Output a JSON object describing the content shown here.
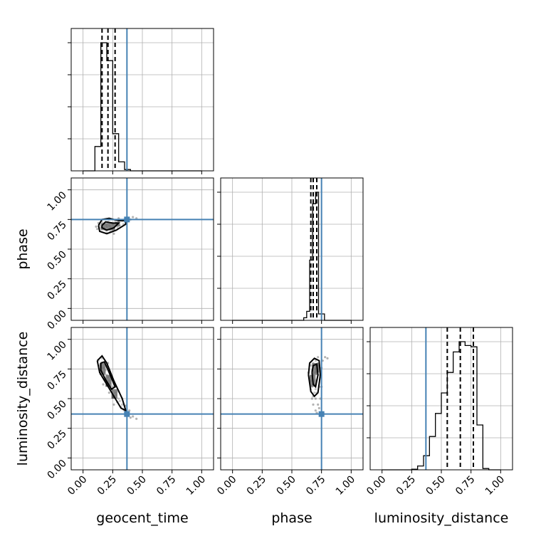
{
  "chart_data": {
    "type": "corner",
    "parameters": [
      "geocent_time",
      "phase",
      "luminosity_distance"
    ],
    "axis_range": [
      -0.1,
      1.1
    ],
    "ticks": [
      0.0,
      0.25,
      0.5,
      0.75,
      1.0
    ],
    "tick_labels": [
      "0.00",
      "0.25",
      "0.50",
      "0.75",
      "1.00"
    ],
    "truths": {
      "geocent_time": 0.37,
      "phase": 0.75,
      "luminosity_distance": 0.37
    },
    "colors": {
      "truth": "#4682b4",
      "hist": "#000000",
      "grid": "#b0b0b0",
      "points": "#808080"
    },
    "grid": true,
    "histograms": [
      {
        "parameter": "geocent_time",
        "bin_edges": [
          0.0,
          0.05,
          0.1,
          0.15,
          0.2,
          0.25,
          0.3,
          0.35,
          0.4,
          0.45,
          0.5,
          0.55,
          0.6,
          0.65,
          0.7,
          0.75,
          0.8,
          0.85,
          0.9,
          0.95,
          1.0
        ],
        "counts": [
          0,
          0,
          0.19,
          1.0,
          0.86,
          0.29,
          0.07,
          0.01,
          0,
          0,
          0,
          0,
          0,
          0,
          0,
          0,
          0,
          0,
          0,
          0
        ],
        "quantiles": [
          0.16,
          0.21,
          0.27
        ]
      },
      {
        "parameter": "phase",
        "bin_edges": [
          0.0,
          0.025,
          0.05,
          0.075,
          0.1,
          0.125,
          0.15,
          0.175,
          0.2,
          0.225,
          0.25,
          0.275,
          0.3,
          0.325,
          0.35,
          0.375,
          0.4,
          0.425,
          0.45,
          0.475,
          0.5,
          0.525,
          0.55,
          0.575,
          0.6,
          0.625,
          0.65,
          0.675,
          0.7,
          0.725,
          0.75,
          0.775,
          0.8,
          0.825,
          0.85,
          0.875,
          0.9,
          0.925,
          0.95,
          0.975,
          1.0
        ],
        "counts": [
          0,
          0,
          0,
          0,
          0,
          0,
          0,
          0,
          0,
          0,
          0,
          0,
          0,
          0,
          0,
          0,
          0,
          0,
          0,
          0,
          0,
          0,
          0,
          0,
          0.02,
          0.07,
          0.47,
          0.91,
          1.0,
          0.05,
          0.05,
          0,
          0,
          0,
          0,
          0,
          0,
          0,
          0,
          0
        ],
        "quantiles": [
          0.66,
          0.68,
          0.71
        ]
      },
      {
        "parameter": "luminosity_distance",
        "bin_edges": [
          0.0,
          0.05,
          0.1,
          0.15,
          0.2,
          0.25,
          0.3,
          0.35,
          0.4,
          0.45,
          0.5,
          0.55,
          0.6,
          0.65,
          0.7,
          0.75,
          0.8,
          0.85,
          0.9,
          0.95,
          1.0
        ],
        "counts": [
          0,
          0,
          0,
          0,
          0,
          0.005,
          0.03,
          0.11,
          0.26,
          0.44,
          0.6,
          0.76,
          0.92,
          1.0,
          0.97,
          0.96,
          0.35,
          0.01,
          0,
          0,
          0
        ],
        "quantiles": [
          0.55,
          0.66,
          0.77
        ]
      }
    ],
    "scatter_panels": [
      {
        "x": "geocent_time",
        "y": "phase",
        "points": [
          [
            0.2,
            0.69
          ],
          [
            0.22,
            0.7
          ],
          [
            0.18,
            0.68
          ],
          [
            0.25,
            0.71
          ],
          [
            0.28,
            0.72
          ],
          [
            0.15,
            0.68
          ],
          [
            0.3,
            0.73
          ],
          [
            0.33,
            0.74
          ],
          [
            0.19,
            0.66
          ],
          [
            0.24,
            0.67
          ],
          [
            0.17,
            0.71
          ],
          [
            0.21,
            0.73
          ],
          [
            0.26,
            0.69
          ],
          [
            0.14,
            0.7
          ],
          [
            0.35,
            0.75
          ],
          [
            0.38,
            0.76
          ],
          [
            0.4,
            0.75
          ],
          [
            0.12,
            0.67
          ],
          [
            0.27,
            0.74
          ],
          [
            0.23,
            0.65
          ],
          [
            0.31,
            0.7
          ],
          [
            0.16,
            0.73
          ],
          [
            0.29,
            0.68
          ],
          [
            0.2,
            0.64
          ],
          [
            0.42,
            0.77
          ],
          [
            0.36,
            0.72
          ],
          [
            0.13,
            0.72
          ],
          [
            0.25,
            0.66
          ],
          [
            0.22,
            0.75
          ],
          [
            0.18,
            0.72
          ],
          [
            0.34,
            0.71
          ],
          [
            0.45,
            0.76
          ],
          [
            0.11,
            0.69
          ],
          [
            0.3,
            0.76
          ],
          [
            0.26,
            0.63
          ],
          [
            0.2,
            0.71
          ],
          [
            0.23,
            0.69
          ],
          [
            0.19,
            0.7
          ],
          [
            0.24,
            0.72
          ],
          [
            0.28,
            0.7
          ]
        ],
        "contours": [
          [
            [
              0.13,
              0.7
            ],
            [
              0.16,
              0.75
            ],
            [
              0.22,
              0.76
            ],
            [
              0.3,
              0.74
            ],
            [
              0.36,
              0.74
            ],
            [
              0.36,
              0.71
            ],
            [
              0.28,
              0.66
            ],
            [
              0.2,
              0.63
            ],
            [
              0.14,
              0.65
            ],
            [
              0.13,
              0.7
            ]
          ],
          [
            [
              0.16,
              0.7
            ],
            [
              0.19,
              0.73
            ],
            [
              0.25,
              0.72
            ],
            [
              0.3,
              0.72
            ],
            [
              0.26,
              0.68
            ],
            [
              0.2,
              0.66
            ],
            [
              0.16,
              0.68
            ],
            [
              0.16,
              0.7
            ]
          ]
        ],
        "dense": [
          [
            0.15,
            0.66,
            0.04,
            0.06
          ],
          [
            0.19,
            0.66,
            0.04,
            0.06
          ],
          [
            0.23,
            0.66,
            0.04,
            0.06
          ],
          [
            0.27,
            0.69,
            0.04,
            0.04
          ]
        ]
      },
      {
        "x": "geocent_time",
        "y": "luminosity_distance",
        "points": [
          [
            0.15,
            0.8
          ],
          [
            0.17,
            0.76
          ],
          [
            0.2,
            0.7
          ],
          [
            0.22,
            0.65
          ],
          [
            0.25,
            0.6
          ],
          [
            0.27,
            0.55
          ],
          [
            0.3,
            0.5
          ],
          [
            0.33,
            0.45
          ],
          [
            0.35,
            0.4
          ],
          [
            0.37,
            0.38
          ],
          [
            0.16,
            0.84
          ],
          [
            0.18,
            0.72
          ],
          [
            0.21,
            0.68
          ],
          [
            0.24,
            0.58
          ],
          [
            0.26,
            0.52
          ],
          [
            0.29,
            0.47
          ],
          [
            0.32,
            0.43
          ],
          [
            0.14,
            0.78
          ],
          [
            0.19,
            0.74
          ],
          [
            0.23,
            0.63
          ],
          [
            0.28,
            0.53
          ],
          [
            0.31,
            0.48
          ],
          [
            0.34,
            0.41
          ],
          [
            0.38,
            0.36
          ],
          [
            0.4,
            0.34
          ],
          [
            0.42,
            0.35
          ],
          [
            0.13,
            0.82
          ],
          [
            0.2,
            0.77
          ],
          [
            0.25,
            0.66
          ],
          [
            0.3,
            0.56
          ],
          [
            0.36,
            0.44
          ],
          [
            0.17,
            0.62
          ],
          [
            0.22,
            0.55
          ],
          [
            0.27,
            0.6
          ],
          [
            0.33,
            0.5
          ],
          [
            0.39,
            0.4
          ],
          [
            0.45,
            0.33
          ],
          [
            0.21,
            0.8
          ],
          [
            0.18,
            0.66
          ],
          [
            0.26,
            0.45
          ]
        ],
        "contours": [
          [
            [
              0.12,
              0.82
            ],
            [
              0.16,
              0.86
            ],
            [
              0.2,
              0.8
            ],
            [
              0.26,
              0.65
            ],
            [
              0.33,
              0.5
            ],
            [
              0.36,
              0.4
            ],
            [
              0.32,
              0.42
            ],
            [
              0.26,
              0.52
            ],
            [
              0.2,
              0.62
            ],
            [
              0.14,
              0.72
            ],
            [
              0.12,
              0.82
            ]
          ],
          [
            [
              0.15,
              0.8
            ],
            [
              0.18,
              0.81
            ],
            [
              0.22,
              0.72
            ],
            [
              0.27,
              0.6
            ],
            [
              0.24,
              0.58
            ],
            [
              0.19,
              0.66
            ],
            [
              0.15,
              0.74
            ],
            [
              0.15,
              0.8
            ]
          ]
        ],
        "dense": [
          [
            0.14,
            0.7,
            0.05,
            0.1
          ],
          [
            0.19,
            0.6,
            0.05,
            0.1
          ],
          [
            0.24,
            0.5,
            0.05,
            0.08
          ]
        ]
      },
      {
        "x": "phase",
        "y": "luminosity_distance",
        "points": [
          [
            0.68,
            0.7
          ],
          [
            0.7,
            0.75
          ],
          [
            0.66,
            0.65
          ],
          [
            0.72,
            0.8
          ],
          [
            0.69,
            0.55
          ],
          [
            0.67,
            0.6
          ],
          [
            0.71,
            0.72
          ],
          [
            0.65,
            0.68
          ],
          [
            0.73,
            0.78
          ],
          [
            0.7,
            0.5
          ],
          [
            0.68,
            0.45
          ],
          [
            0.72,
            0.85
          ],
          [
            0.66,
            0.58
          ],
          [
            0.74,
            0.7
          ],
          [
            0.69,
            0.62
          ],
          [
            0.71,
            0.66
          ],
          [
            0.67,
            0.74
          ],
          [
            0.7,
            0.82
          ],
          [
            0.73,
            0.6
          ],
          [
            0.68,
            0.52
          ],
          [
            0.75,
            0.76
          ],
          [
            0.64,
            0.72
          ],
          [
            0.72,
            0.45
          ],
          [
            0.7,
            0.4
          ],
          [
            0.76,
            0.82
          ],
          [
            0.78,
            0.85
          ],
          [
            0.8,
            0.84
          ],
          [
            0.69,
            0.78
          ],
          [
            0.71,
            0.55
          ],
          [
            0.74,
            0.5
          ],
          [
            0.66,
            0.78
          ],
          [
            0.73,
            0.42
          ],
          [
            0.7,
            0.65
          ],
          [
            0.68,
            0.8
          ],
          [
            0.72,
            0.7
          ],
          [
            0.75,
            0.6
          ],
          [
            0.67,
            0.5
          ],
          [
            0.71,
            0.38
          ],
          [
            0.69,
            0.72
          ],
          [
            0.7,
            0.58
          ]
        ],
        "contours": [
          [
            [
              0.64,
              0.7
            ],
            [
              0.65,
              0.8
            ],
            [
              0.69,
              0.84
            ],
            [
              0.73,
              0.82
            ],
            [
              0.74,
              0.7
            ],
            [
              0.72,
              0.55
            ],
            [
              0.69,
              0.52
            ],
            [
              0.66,
              0.56
            ],
            [
              0.64,
              0.7
            ]
          ],
          [
            [
              0.67,
              0.72
            ],
            [
              0.68,
              0.78
            ],
            [
              0.71,
              0.79
            ],
            [
              0.72,
              0.7
            ],
            [
              0.7,
              0.6
            ],
            [
              0.68,
              0.62
            ],
            [
              0.67,
              0.72
            ]
          ]
        ],
        "dense": [
          [
            0.65,
            0.6,
            0.05,
            0.1
          ],
          [
            0.67,
            0.7,
            0.05,
            0.1
          ],
          [
            0.7,
            0.72,
            0.03,
            0.08
          ]
        ]
      }
    ],
    "xlabels": [
      "geocent_time",
      "phase",
      "luminosity_distance"
    ],
    "ylabels": [
      "phase",
      "luminosity_distance"
    ]
  }
}
